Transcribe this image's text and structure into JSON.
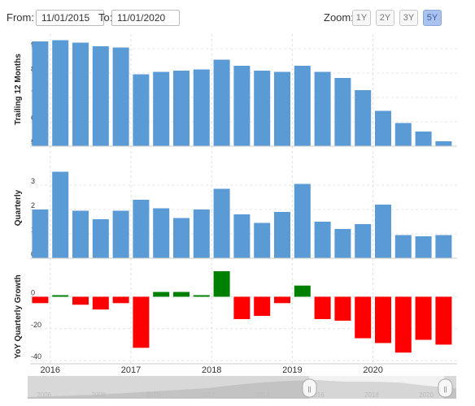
{
  "toolbar": {
    "from_label": "From:",
    "from_value": "11/01/2015",
    "to_label": "To:",
    "to_value": "11/01/2020",
    "zoom_label": "Zoom:",
    "zoom_options": [
      "1Y",
      "2Y",
      "3Y",
      "5Y"
    ],
    "zoom_selected": "5Y"
  },
  "navigator": {
    "year_labels": [
      "2006",
      "2008",
      "2010",
      "2012",
      "2014",
      "2016",
      "2018",
      "2020"
    ],
    "handle_glyph": "||"
  },
  "chart_data": [
    {
      "type": "bar",
      "ylabel": "Trailing 12 Months",
      "x": [
        "2015-09",
        "2015-12",
        "2016-03",
        "2016-06",
        "2016-09",
        "2016-12",
        "2017-03",
        "2017-06",
        "2017-09",
        "2017-12",
        "2018-03",
        "2018-06",
        "2018-09",
        "2018-12",
        "2019-03",
        "2019-06",
        "2019-09",
        "2019-12",
        "2020-03",
        "2020-06",
        "2020-09"
      ],
      "values": [
        9.3,
        9.35,
        9.25,
        9.1,
        9.05,
        7.95,
        8.05,
        8.1,
        8.15,
        8.55,
        8.3,
        8.1,
        8.05,
        8.3,
        8.05,
        7.8,
        7.3,
        6.45,
        5.95,
        5.6,
        5.2
      ],
      "ylim": [
        5,
        9.6
      ],
      "yticks": [
        5,
        6,
        7,
        8,
        9
      ],
      "color": "#5b9bd5"
    },
    {
      "type": "bar",
      "ylabel": "Quarterly",
      "x": [
        "2015-09",
        "2015-12",
        "2016-03",
        "2016-06",
        "2016-09",
        "2016-12",
        "2017-03",
        "2017-06",
        "2017-09",
        "2017-12",
        "2018-03",
        "2018-06",
        "2018-09",
        "2018-12",
        "2019-03",
        "2019-06",
        "2019-09",
        "2019-12",
        "2020-03",
        "2020-06",
        "2020-09"
      ],
      "values": [
        2.0,
        3.55,
        1.95,
        1.6,
        1.95,
        2.4,
        2.05,
        1.65,
        2.0,
        2.85,
        1.8,
        1.45,
        1.9,
        3.05,
        1.5,
        1.2,
        1.4,
        2.2,
        0.95,
        0.9,
        0.95
      ],
      "ylim": [
        0,
        4
      ],
      "yticks": [
        0,
        1,
        2,
        3
      ],
      "color": "#5b9bd5"
    },
    {
      "type": "bar",
      "ylabel": "YoY Quarterly Growth",
      "x": [
        "2015-09",
        "2015-12",
        "2016-03",
        "2016-06",
        "2016-09",
        "2016-12",
        "2017-03",
        "2017-06",
        "2017-09",
        "2017-12",
        "2018-03",
        "2018-06",
        "2018-09",
        "2018-12",
        "2019-03",
        "2019-06",
        "2019-09",
        "2019-12",
        "2020-03",
        "2020-06",
        "2020-09"
      ],
      "values": [
        -4,
        1,
        -5,
        -8,
        -4,
        -32,
        3,
        3,
        1,
        16,
        -14,
        -12,
        -4,
        7,
        -14,
        -15,
        -26,
        -29,
        -35,
        -27,
        -30
      ],
      "ylim": [
        -42,
        16
      ],
      "yticks": [
        -40,
        -20,
        0
      ],
      "positive_color": "#008000",
      "negative_color": "#ff0000"
    }
  ],
  "x_axis": {
    "labels": [
      "2016",
      "2017",
      "2018",
      "2019",
      "2020"
    ],
    "label_positions": [
      2016.0,
      2017.0,
      2018.0,
      2019.0,
      2020.0
    ]
  }
}
